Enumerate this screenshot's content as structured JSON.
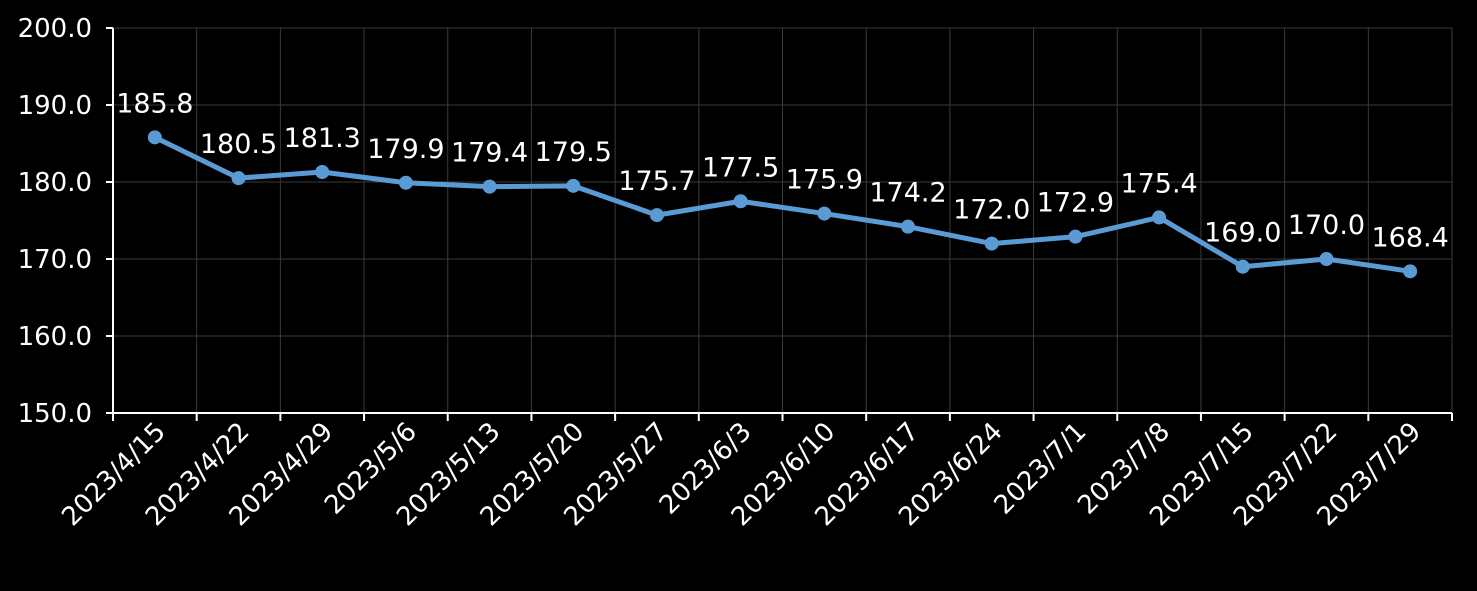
{
  "chart_data": {
    "type": "line",
    "categories": [
      "2023/4/15",
      "2023/4/22",
      "2023/4/29",
      "2023/5/6",
      "2023/5/13",
      "2023/5/20",
      "2023/5/27",
      "2023/6/3",
      "2023/6/10",
      "2023/6/17",
      "2023/6/24",
      "2023/7/1",
      "2023/7/8",
      "2023/7/15",
      "2023/7/22",
      "2023/7/29"
    ],
    "series": [
      {
        "values": [
          185.8,
          180.5,
          181.3,
          179.9,
          179.4,
          179.5,
          175.7,
          177.5,
          175.9,
          174.2,
          172.0,
          172.9,
          175.4,
          169.0,
          170.0,
          168.4
        ]
      }
    ],
    "data_labels": [
      "185.8",
      "180.5",
      "181.3",
      "179.9",
      "179.4",
      "179.5",
      "175.7",
      "177.5",
      "175.9",
      "174.2",
      "172.0",
      "172.9",
      "175.4",
      "169.0",
      "170.0",
      "168.4"
    ],
    "yticks": [
      "150.0",
      "160.0",
      "170.0",
      "180.0",
      "190.0",
      "200.0"
    ],
    "ylim": [
      150,
      200
    ],
    "grid": true,
    "line_color": "#5b9bd5",
    "background": "#000000",
    "text_color": "#ffffff"
  }
}
